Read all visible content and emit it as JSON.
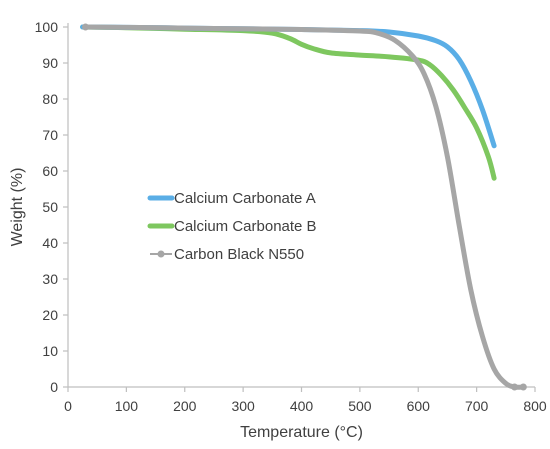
{
  "chart_data": {
    "type": "line",
    "title": "",
    "xlabel": "Temperature (°C)",
    "ylabel": "Weight (%)",
    "xlim": [
      0,
      800
    ],
    "ylim": [
      0,
      100
    ],
    "x_ticks": [
      0,
      100,
      200,
      300,
      400,
      500,
      600,
      700,
      800
    ],
    "y_ticks": [
      0,
      10,
      20,
      30,
      40,
      50,
      60,
      70,
      80,
      90,
      100
    ],
    "grid": false,
    "legend_position": "center-left",
    "series": [
      {
        "name": "Calcium Carbonate A",
        "color": "#5aaee6",
        "marker": "none",
        "x": [
          25,
          100,
          200,
          300,
          400,
          500,
          550,
          600,
          630,
          650,
          670,
          690,
          710,
          730
        ],
        "y": [
          100,
          99.9,
          99.7,
          99.5,
          99.3,
          99.0,
          98.6,
          97.5,
          96.2,
          94.5,
          91,
          85,
          77,
          67
        ]
      },
      {
        "name": "Calcium Carbonate B",
        "color": "#7ec75f",
        "marker": "none",
        "x": [
          25,
          100,
          200,
          300,
          350,
          380,
          400,
          420,
          450,
          500,
          550,
          600,
          620,
          640,
          660,
          680,
          700,
          720,
          730
        ],
        "y": [
          100,
          99.8,
          99.4,
          99.0,
          98.3,
          96.8,
          95.2,
          94.0,
          92.8,
          92.2,
          91.7,
          90.8,
          89.5,
          86.5,
          82.5,
          77.5,
          72,
          64,
          58
        ]
      },
      {
        "name": "Carbon Black N550",
        "color": "#a6a6a6",
        "marker": "circle",
        "x": [
          30,
          100,
          200,
          300,
          400,
          500,
          530,
          560,
          590,
          610,
          630,
          650,
          670,
          690,
          710,
          730,
          750,
          765,
          780
        ],
        "y": [
          100,
          99.9,
          99.7,
          99.5,
          99.3,
          98.9,
          98.3,
          96.3,
          92,
          87,
          78,
          64,
          45,
          27,
          14,
          5,
          1,
          0,
          0
        ]
      }
    ]
  }
}
